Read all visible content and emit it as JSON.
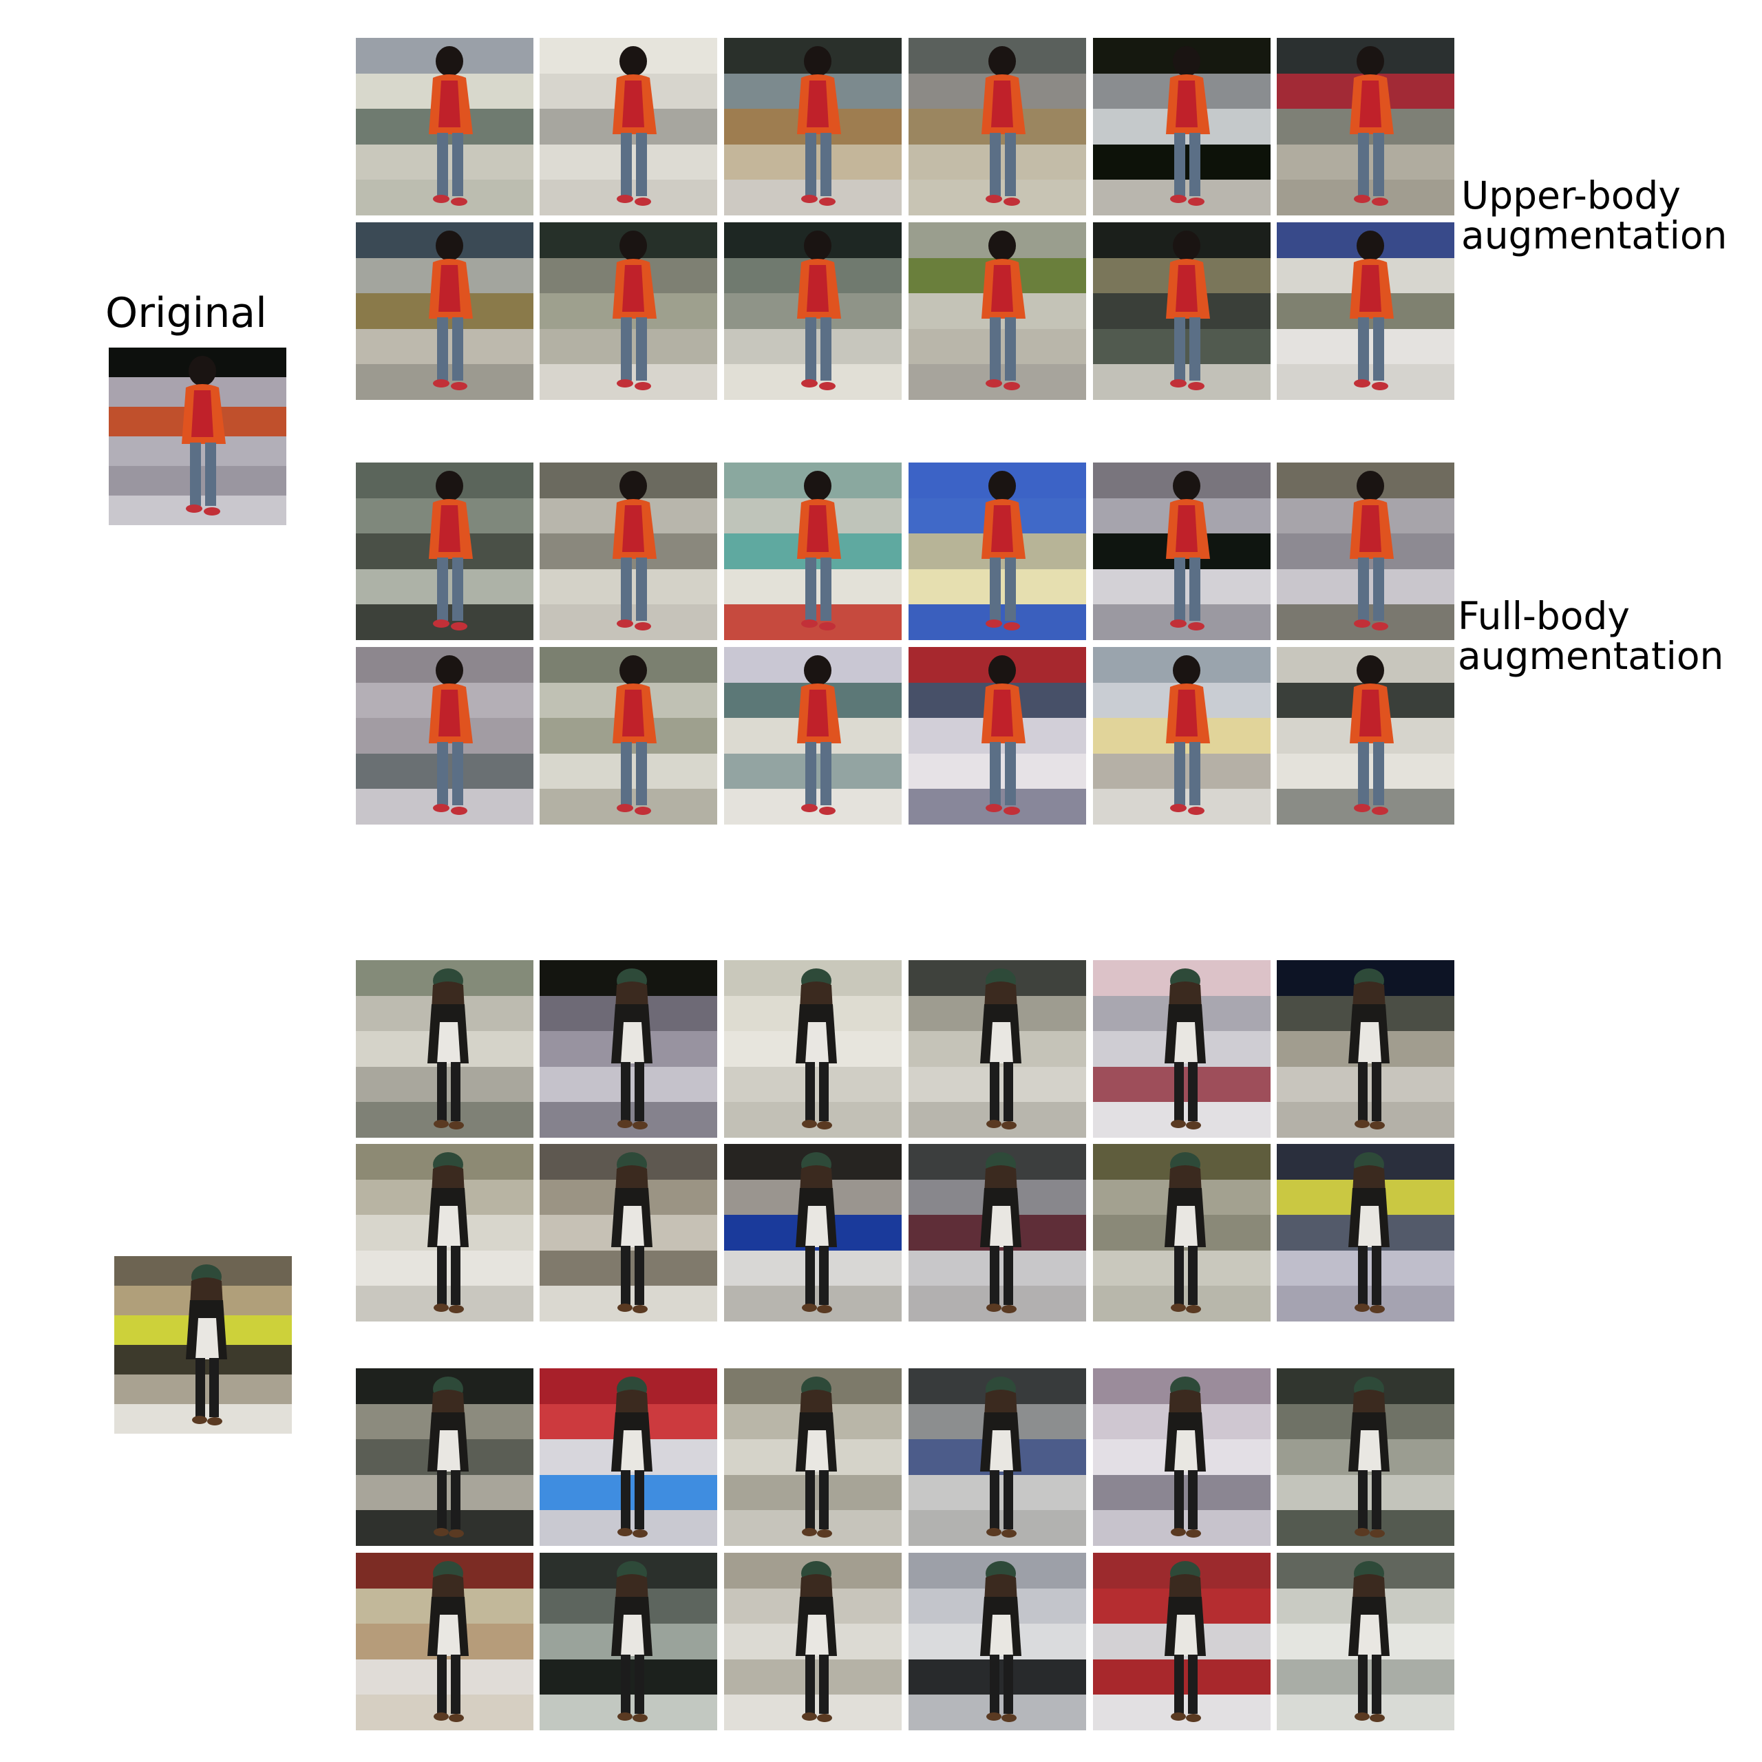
{
  "labels": {
    "original": "Original",
    "upper_line1": "Upper-body",
    "upper_line2": "augmentation",
    "full_line1": "Full-body",
    "full_line2": "augmentation"
  },
  "subjects": [
    {
      "name": "subject-1",
      "person": {
        "type": "red-jacket",
        "jacket": "#e0531f",
        "shirt": "#c0212a",
        "hair": "#1a1412",
        "legs": "#5b6f86",
        "shoes": "#c23038"
      },
      "original_background": [
        "#0d100d",
        "#a9a3ae",
        "#c0502c",
        "#b2afb8",
        "#9a96a0",
        "#c9c7cd"
      ],
      "upper_body": [
        [
          "#9aa0a8",
          "#d8d8cc",
          "#6f7b70",
          "#c9c8bc",
          "#bcbdb0"
        ],
        [
          "#e6e4dc",
          "#d7d5cd",
          "#a7a69f",
          "#dddbd3",
          "#cfccc4"
        ],
        [
          "#2a302b",
          "#7c8a8e",
          "#9e7d50",
          "#c4b69a",
          "#cdc9c2"
        ],
        [
          "#5a605c",
          "#8c8a86",
          "#9b8660",
          "#c3bca8",
          "#c8c4b4"
        ],
        [
          "#15180f",
          "#8a8d90",
          "#c5c9cb",
          "#0d1209",
          "#b9b6ae"
        ],
        [
          "#2b3030",
          "#a22a36",
          "#7e8076",
          "#b0ac9f",
          "#a19d90"
        ],
        [
          "#3b4a55",
          "#a3a59e",
          "#8a7a4a",
          "#bdb9ad",
          "#9c9a90"
        ],
        [
          "#263029",
          "#7e8073",
          "#9ea08e",
          "#b3b1a4",
          "#d8d5cd"
        ],
        [
          "#1e2723",
          "#707a6f",
          "#8f9488",
          "#c7c6bd",
          "#e1dfd6"
        ],
        [
          "#9a9e8e",
          "#6a7f3c",
          "#c4c3b7",
          "#b9b6aa",
          "#a7a49c"
        ],
        [
          "#1b1f1b",
          "#7a765a",
          "#3a3f39",
          "#515a4f",
          "#c2c1b8"
        ],
        [
          "#384a8a",
          "#d7d6cf",
          "#7f8170",
          "#e4e2df",
          "#d5d3ce"
        ]
      ],
      "full_body": [
        [
          "#5b655b",
          "#7f887c",
          "#4a5047",
          "#adb2a7",
          "#3d413a"
        ],
        [
          "#6b6a5f",
          "#b8b6ac",
          "#8a887d",
          "#d4d2c8",
          "#c6c3ba"
        ],
        [
          "#8aa89f",
          "#bfc4ba",
          "#5fa9a0",
          "#e3e1d8",
          "#c64a3e"
        ],
        [
          "#3c63c6",
          "#4069c8",
          "#b7b497",
          "#e6dfb0",
          "#3a5fbe"
        ],
        [
          "#79757d",
          "#a6a4ad",
          "#0f1510",
          "#d3d1d6",
          "#9b99a1"
        ],
        [
          "#6f6b5e",
          "#a7a4aa",
          "#8d8a92",
          "#c9c6cc",
          "#7a786f"
        ],
        [
          "#8d878e",
          "#b4afb6",
          "#a29ca3",
          "#6a7073",
          "#c8c5ca"
        ],
        [
          "#7b8070",
          "#c0c1b4",
          "#9ea08e",
          "#d8d7cd",
          "#b3b1a4"
        ],
        [
          "#c9c7d3",
          "#5c7877",
          "#dcdad1",
          "#93a4a2",
          "#e4e2dc"
        ],
        [
          "#a7282e",
          "#475068",
          "#d2cfd8",
          "#e6e2e6",
          "#88879a"
        ],
        [
          "#9aa4ad",
          "#c9cdd3",
          "#e1d49a",
          "#b5b0a6",
          "#d8d6d0"
        ],
        [
          "#c8c6bd",
          "#3a3f3a",
          "#d6d4cc",
          "#e4e2db",
          "#8a8c86"
        ]
      ]
    },
    {
      "name": "subject-2",
      "person": {
        "type": "black-cardigan",
        "jacket": "#1b1a18",
        "shirt": "#e9e7e2",
        "hair": "#3b2a1f",
        "legs": "#1c1c1c",
        "shoes": "#5a3a22",
        "hat": "#2e4a39"
      },
      "original_background": [
        "#6d6452",
        "#b09f7a",
        "#cdd13a",
        "#3d3a2c",
        "#a9a291",
        "#e2e0d9"
      ],
      "upper_body": [
        [
          "#848b79",
          "#bdbbb0",
          "#d5d3c9",
          "#a9a79d",
          "#7f8176"
        ],
        [
          "#141510",
          "#6e6a76",
          "#9893a0",
          "#c5c2cb",
          "#85828d"
        ],
        [
          "#c9c8bb",
          "#dedcd1",
          "#e7e5dd",
          "#d0cec5",
          "#c2c0b6"
        ],
        [
          "#3f423d",
          "#9e9c90",
          "#c5c3b8",
          "#d4d2ca",
          "#b8b6ad"
        ],
        [
          "#dcc2c8",
          "#a9a7b0",
          "#cfcdd3",
          "#9e4e5a",
          "#e2e0e3"
        ],
        [
          "#0d1425",
          "#4b4e45",
          "#a19d8f",
          "#c8c5bd",
          "#b4b1a8"
        ],
        [
          "#8d8a74",
          "#b8b4a3",
          "#d8d6cc",
          "#e6e4de",
          "#c9c7bf"
        ],
        [
          "#5e5850",
          "#9b9484",
          "#c6c1b5",
          "#807a6c",
          "#dad8d0"
        ],
        [
          "#262421",
          "#9a958f",
          "#1a3a9b",
          "#d8d7d5",
          "#b7b5af"
        ],
        [
          "#3c3e3e",
          "#88878c",
          "#5f2e38",
          "#c8c7c9",
          "#b2b0b0"
        ],
        [
          "#5f5d3d",
          "#a3a190",
          "#8a8978",
          "#c9c8bd",
          "#b8b7ab"
        ],
        [
          "#2a2f3d",
          "#cac842",
          "#535a6a",
          "#bfbecb",
          "#a5a3b1"
        ]
      ],
      "full_body": [
        [
          "#1e211d",
          "#8c8b7e",
          "#5b5e55",
          "#a8a59a",
          "#2f312d"
        ],
        [
          "#a8202a",
          "#cc3a3e",
          "#d7d6dc",
          "#3f8de0",
          "#c9c9d1"
        ],
        [
          "#7d7a6a",
          "#b9b6a8",
          "#d5d3c9",
          "#a7a497",
          "#c6c4bb"
        ],
        [
          "#383b3c",
          "#8c8e8f",
          "#4c5c8a",
          "#c7c7c6",
          "#b2b2b0"
        ],
        [
          "#9b8c9b",
          "#cfc7d1",
          "#e3dfe5",
          "#8b8692",
          "#c7c3cc"
        ],
        [
          "#31362f",
          "#6f7266",
          "#9b9d91",
          "#c3c4bb",
          "#545a50"
        ],
        [
          "#7c2c24",
          "#c2b89a",
          "#b69c7a",
          "#e0dcd7",
          "#d6cfc2"
        ],
        [
          "#2b302c",
          "#5d655e",
          "#9aa39b",
          "#1c211d",
          "#c2c8c1"
        ],
        [
          "#a39e90",
          "#c8c5bb",
          "#dcdad3",
          "#b5b2a6",
          "#e1dfd9"
        ],
        [
          "#9da0a8",
          "#c3c5cb",
          "#dadbdd",
          "#282a2c",
          "#b5b7bb"
        ],
        [
          "#9c2a2d",
          "#b52d30",
          "#d3d1d4",
          "#a8282c",
          "#e2e0e2"
        ],
        [
          "#61665d",
          "#c9cbc3",
          "#e4e5e0",
          "#a9ada6",
          "#d9dbd6"
        ]
      ]
    }
  ]
}
